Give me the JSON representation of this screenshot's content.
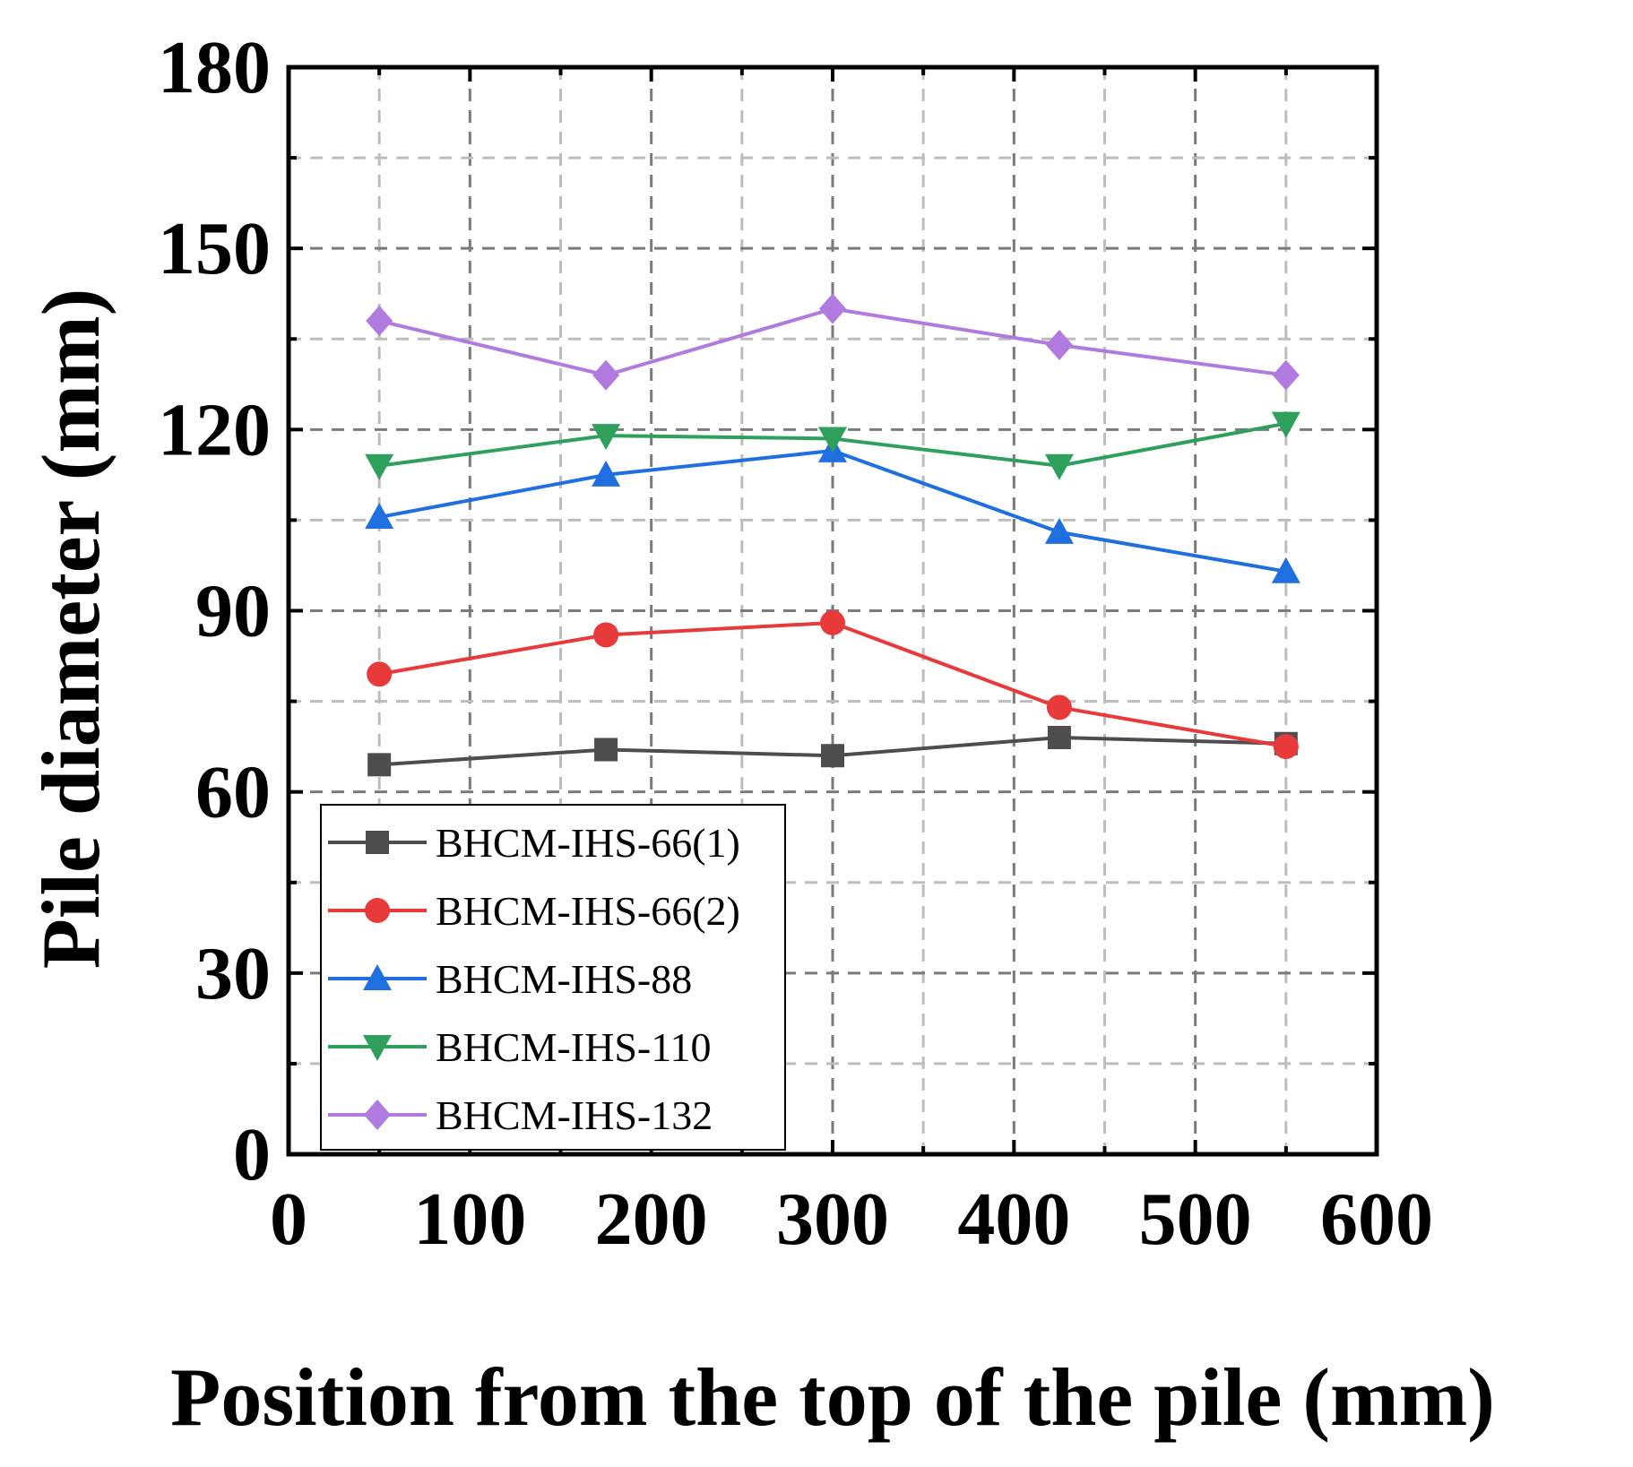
{
  "chart_data": {
    "type": "line",
    "title": "",
    "xlabel": "Position from the top of the pile (mm)",
    "ylabel": "Pile diameter (mm)",
    "xlim": [
      0,
      600
    ],
    "ylim": [
      0,
      180
    ],
    "xticks": [
      0,
      100,
      200,
      300,
      400,
      500,
      600
    ],
    "yticks": [
      0,
      30,
      60,
      90,
      120,
      150,
      180
    ],
    "grid": true,
    "legend_position": "bottom-left",
    "x": [
      50,
      175,
      300,
      425,
      550
    ],
    "series": [
      {
        "name": "BHCM-IHS-66(1)",
        "marker": "square",
        "color": "#4d4d4d",
        "values": [
          64.5,
          67,
          66,
          69,
          68
        ]
      },
      {
        "name": "BHCM-IHS-66(2)",
        "marker": "circle",
        "color": "#e83a3a",
        "values": [
          79.5,
          86,
          88,
          74,
          67.5
        ]
      },
      {
        "name": "BHCM-IHS-88",
        "marker": "triangle-up",
        "color": "#1f6fe0",
        "values": [
          105.5,
          112.5,
          116.5,
          103,
          96.5
        ]
      },
      {
        "name": "BHCM-IHS-110",
        "marker": "triangle-down",
        "color": "#2ea05c",
        "values": [
          114,
          119,
          118.5,
          114,
          121
        ]
      },
      {
        "name": "BHCM-IHS-132",
        "marker": "diamond",
        "color": "#b07ae0",
        "values": [
          138,
          129,
          140,
          134,
          129
        ]
      }
    ]
  }
}
